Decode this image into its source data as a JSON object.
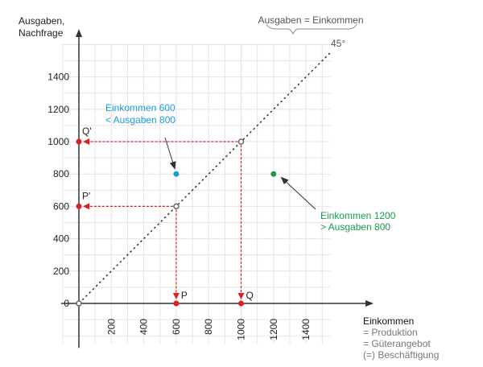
{
  "chart_data": {
    "type": "scatter",
    "ylabel": [
      "Ausgaben,",
      "Nachfrage"
    ],
    "xlabel": "Einkommen",
    "xlabel_notes": [
      "= Produktion",
      "= Güterangebot",
      "(=) Beschäftigung"
    ],
    "x_ticks": [
      200,
      400,
      600,
      800,
      1000,
      1200,
      1400
    ],
    "y_ticks": [
      0,
      200,
      400,
      600,
      800,
      1000,
      1200,
      1400
    ],
    "xlim": [
      -100,
      1550
    ],
    "ylim": [
      -250,
      1600
    ],
    "grid": true,
    "grid_step": 100,
    "diagonal": {
      "label": "45°",
      "brace_label": "Ausgaben = Einkommen",
      "from": [
        0,
        0
      ],
      "to": [
        1560,
        1560
      ]
    },
    "equilibrium_points": [
      [
        0,
        0
      ],
      [
        600,
        600
      ],
      [
        1000,
        1000
      ]
    ],
    "projections": [
      {
        "from": [
          600,
          600
        ],
        "to_x": {
          "point": [
            600,
            0
          ],
          "label": "P"
        },
        "to_y": {
          "point": [
            0,
            600
          ],
          "label": "P'"
        }
      },
      {
        "from": [
          1000,
          1000
        ],
        "to_x": {
          "point": [
            1000,
            0
          ],
          "label": "Q"
        },
        "to_y": {
          "point": [
            0,
            1000
          ],
          "label": "Q'"
        }
      }
    ],
    "annotations": [
      {
        "point": [
          600,
          800
        ],
        "color": "#1a9be0",
        "lines": [
          "Einkommen 600",
          "< Ausgaben 800"
        ]
      },
      {
        "point": [
          1200,
          800
        ],
        "color": "#1a9a4a",
        "lines": [
          "Einkommen 1200",
          "> Ausgaben 800"
        ]
      }
    ],
    "colors": {
      "projection": "#e02020",
      "axis": "#333333",
      "grid": "#e4e4e4"
    }
  }
}
